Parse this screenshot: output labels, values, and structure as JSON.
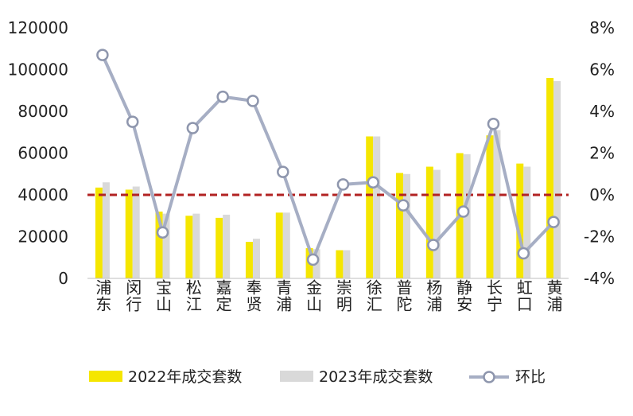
{
  "chart_data": {
    "type": "bar",
    "title": "",
    "xlabel": "",
    "ylabel": "",
    "categories": [
      "浦东",
      "闵行",
      "宝山",
      "松江",
      "嘉定",
      "奉贤",
      "青浦",
      "金山",
      "崇明",
      "徐汇",
      "普陀",
      "杨浦",
      "静安",
      "长宁",
      "虹口",
      "黄浦"
    ],
    "ylim": [
      0,
      120000
    ],
    "yticks": [
      "0",
      "20000",
      "40000",
      "60000",
      "80000",
      "100000",
      "120000"
    ],
    "y2lim": [
      -4,
      8
    ],
    "y2ticks": [
      "-4%",
      "-2%",
      "0%",
      "2%",
      "4%",
      "6%",
      "8%"
    ],
    "reference_line": {
      "axis": "y2",
      "value": 0,
      "color": "#b22222",
      "style": "dashed"
    },
    "legend_position": "bottom",
    "series": [
      {
        "name": "2022年成交套数",
        "type": "bar",
        "axis": "y",
        "color": "#f5e600",
        "values": [
          43500,
          42500,
          32000,
          30000,
          29000,
          17500,
          31500,
          14500,
          13500,
          68000,
          50500,
          53500,
          60000,
          68500,
          55000,
          96000
        ]
      },
      {
        "name": "2023年成交套数",
        "type": "bar",
        "axis": "y",
        "color": "#d9d9d9",
        "values": [
          46000,
          44000,
          31000,
          31000,
          30500,
          19000,
          31500,
          14000,
          13500,
          68000,
          50000,
          52000,
          59500,
          71000,
          53500,
          94500
        ]
      },
      {
        "name": "环比",
        "type": "line",
        "axis": "y2",
        "color": "#a6aec4",
        "values": [
          6.7,
          3.5,
          -1.8,
          3.2,
          4.7,
          4.5,
          1.1,
          -3.1,
          0.5,
          0.6,
          -0.5,
          -2.4,
          -0.8,
          3.4,
          -2.8,
          -1.3
        ]
      }
    ]
  }
}
